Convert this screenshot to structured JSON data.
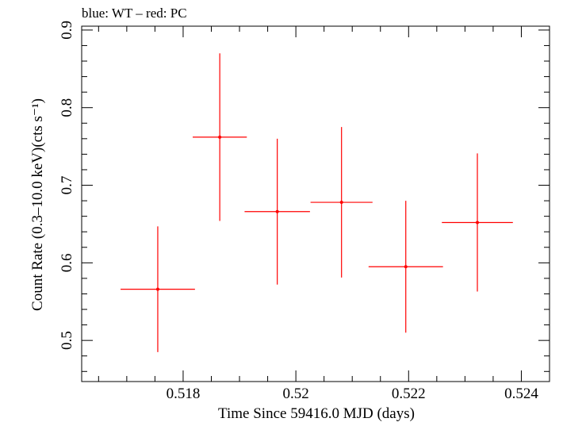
{
  "chart_data": {
    "type": "scatter",
    "title": "blue: WT – red: PC",
    "xlabel": "Time Since 59416.0 MJD (days)",
    "ylabel": "Count Rate (0.3–10.0 keV)(cts s⁻¹)",
    "xlim": [
      0.5162,
      0.5245
    ],
    "ylim": [
      0.447,
      0.905
    ],
    "x_ticks": [
      0.518,
      0.52,
      0.522,
      0.524
    ],
    "x_tick_labels": [
      "0.518",
      "0.52",
      "0.522",
      "0.524"
    ],
    "y_ticks": [
      0.5,
      0.6,
      0.7,
      0.8,
      0.9
    ],
    "y_tick_labels": [
      "0.5",
      "0.6",
      "0.7",
      "0.8",
      "0.9"
    ],
    "grid": false,
    "series": [
      {
        "color": "#ff0000",
        "points": [
          {
            "x": 0.51755,
            "xerr": 0.00066,
            "y": 0.566,
            "yerr": 0.081
          },
          {
            "x": 0.51865,
            "xerr": 0.00048,
            "y": 0.762,
            "yerr": 0.108
          },
          {
            "x": 0.51967,
            "xerr": 0.00058,
            "y": 0.666,
            "yerr": 0.094
          },
          {
            "x": 0.52081,
            "xerr": 0.00055,
            "y": 0.678,
            "yerr": 0.097
          },
          {
            "x": 0.52195,
            "xerr": 0.00066,
            "y": 0.595,
            "yerr": 0.085
          },
          {
            "x": 0.52322,
            "xerr": 0.00063,
            "y": 0.652,
            "yerr": 0.089
          }
        ]
      }
    ]
  }
}
